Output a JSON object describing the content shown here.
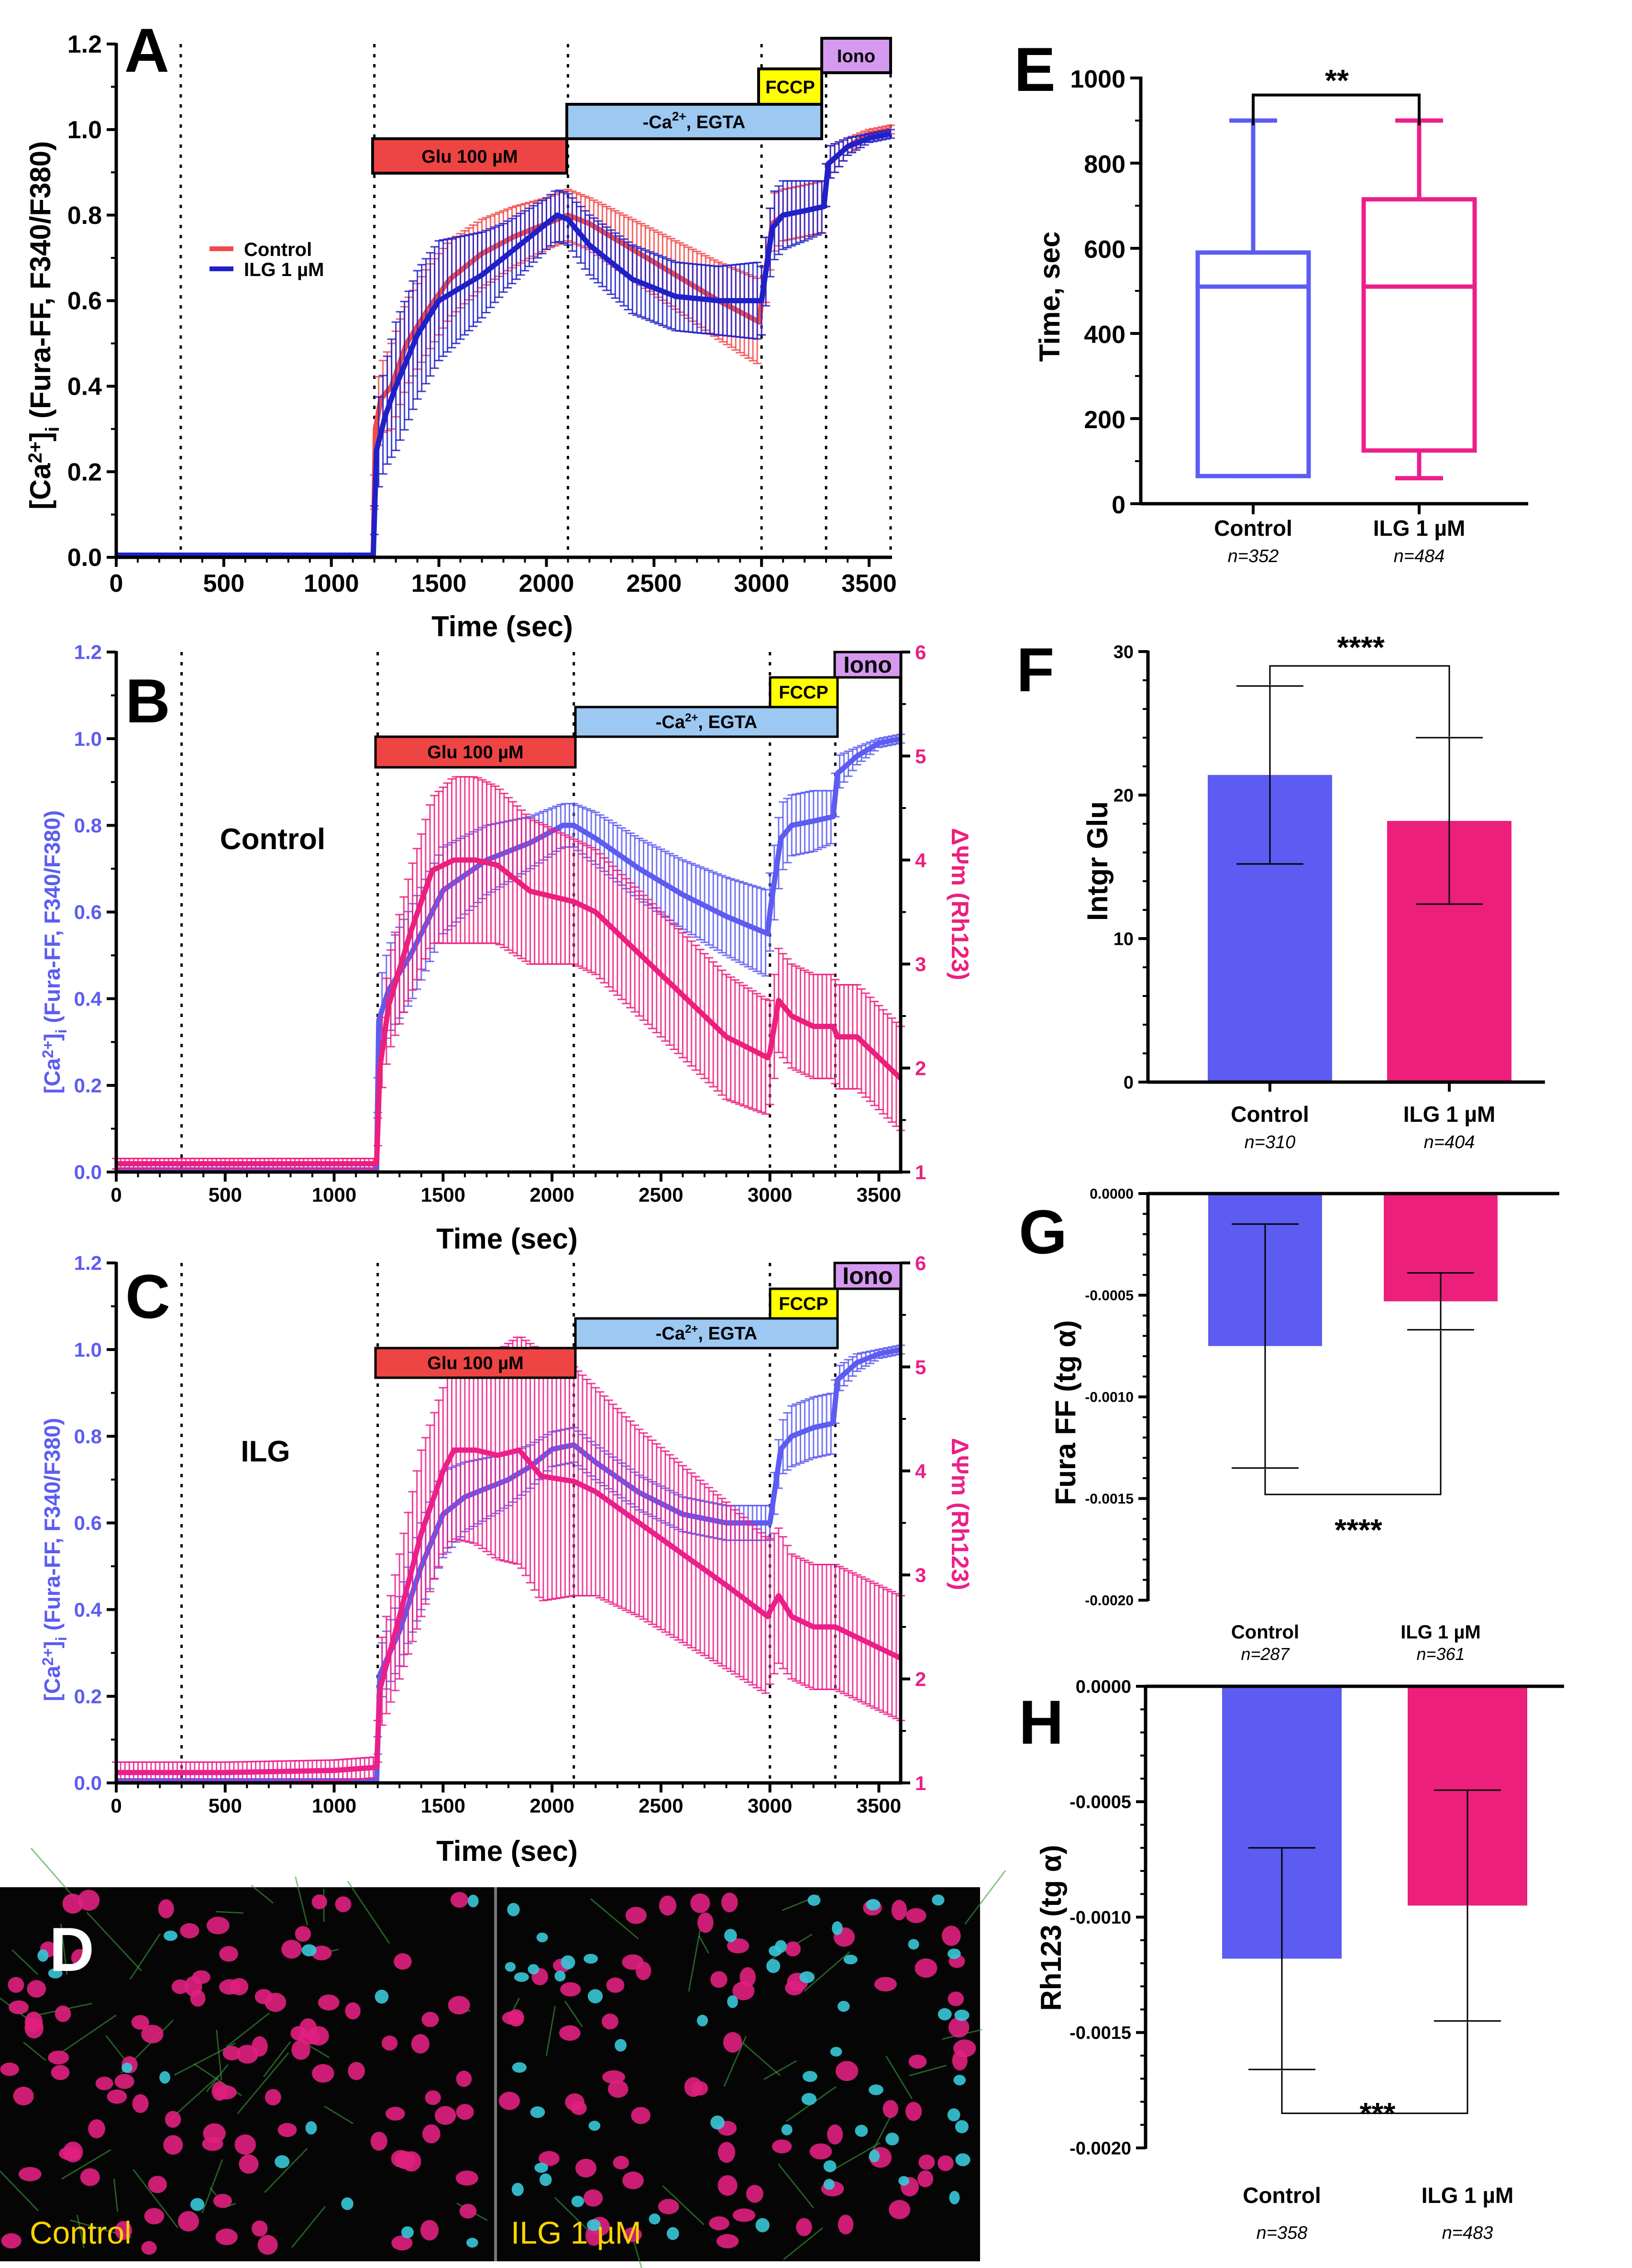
{
  "colors": {
    "control_red": "#f24a4a",
    "ilg_blue": "#1f20c9",
    "ca_blue": "#5c5cf2",
    "rh_magenta": "#ec1f7d",
    "ilg_magenta": "#ec1f8a",
    "glu_bar": "#ef4444",
    "egta_bar": "#9cc8f2",
    "fccp_bar": "#ffff00",
    "iono_bar": "#d59aef"
  },
  "treatments": {
    "glu": "Glu 100 µM",
    "ca_prefix": "-Ca",
    "ca_sup": "2+",
    "ca_suffix": ", EGTA",
    "fccp": "FCCP",
    "iono": "Iono"
  },
  "panel_a": {
    "letter": "A",
    "xlabel": "Time (sec)",
    "ylabel": "[Ca2+]i (Fura-FF, F340/F380)",
    "legend": [
      "Control",
      "ILG 1 µM"
    ]
  },
  "panel_b": {
    "letter": "B",
    "label": "Control",
    "xlabel": "Time (sec)",
    "ylabel": "[Ca2+]i (Fura-FF, F340/F380)",
    "y2label": "ΔΨm (Rh123)"
  },
  "panel_c": {
    "letter": "C",
    "label": "ILG",
    "xlabel": "Time (sec)",
    "ylabel": "[Ca2+]i (Fura-FF, F340/F380)",
    "y2label": "ΔΨm (Rh123)"
  },
  "panel_d": {
    "letter": "D",
    "left_caption": "Control",
    "right_caption": "ILG 1 µM"
  },
  "chart_data": [
    {
      "panel": "A",
      "type": "line",
      "xlabel": "Time (sec)",
      "ylabel": "[Ca2+]i (Fura-FF, F340/F380)",
      "xlim": [
        0,
        3600
      ],
      "ylim": [
        0,
        1.2
      ],
      "xticks": [
        "0",
        "500",
        "1000",
        "1500",
        "2000",
        "2500",
        "3000",
        "3500"
      ],
      "yticks": [
        "0.0",
        "0.2",
        "0.4",
        "0.6",
        "0.8",
        "1.0",
        "1.2"
      ],
      "event_lines_sec": [
        300,
        1200,
        2100,
        3000,
        3300,
        3600
      ],
      "series": [
        {
          "name": "Control",
          "color": "#f24a4a",
          "x": [
            0,
            1195,
            1205,
            1230,
            1280,
            1350,
            1450,
            1550,
            1700,
            1850,
            2000,
            2100,
            2200,
            2400,
            2600,
            2800,
            2990,
            3000,
            3050,
            3100,
            3200,
            3290,
            3310,
            3400,
            3500,
            3600
          ],
          "y": [
            0.005,
            0.005,
            0.3,
            0.37,
            0.4,
            0.5,
            0.58,
            0.65,
            0.71,
            0.75,
            0.78,
            0.8,
            0.78,
            0.72,
            0.66,
            0.6,
            0.55,
            0.6,
            0.78,
            0.8,
            0.81,
            0.82,
            0.92,
            0.96,
            0.99,
            1.0
          ],
          "err": [
            0,
            0,
            0.08,
            0.08,
            0.1,
            0.1,
            0.1,
            0.09,
            0.08,
            0.07,
            0.06,
            0.06,
            0.06,
            0.07,
            0.08,
            0.09,
            0.1,
            0.08,
            0.07,
            0.06,
            0.06,
            0.06,
            0.04,
            0.02,
            0.01,
            0.01
          ]
        },
        {
          "name": "ILG 1 µM",
          "color": "#1f20c9",
          "x": [
            0,
            1195,
            1210,
            1250,
            1300,
            1400,
            1500,
            1600,
            1700,
            1800,
            1900,
            2000,
            2050,
            2100,
            2200,
            2400,
            2600,
            2800,
            2990,
            3000,
            3050,
            3100,
            3200,
            3290,
            3310,
            3400,
            3500,
            3600
          ],
          "y": [
            0.005,
            0.005,
            0.25,
            0.33,
            0.4,
            0.52,
            0.6,
            0.63,
            0.66,
            0.7,
            0.74,
            0.78,
            0.8,
            0.79,
            0.73,
            0.65,
            0.61,
            0.6,
            0.6,
            0.6,
            0.77,
            0.8,
            0.81,
            0.82,
            0.92,
            0.96,
            0.98,
            0.99
          ],
          "err": [
            0,
            0,
            0.1,
            0.12,
            0.15,
            0.15,
            0.14,
            0.12,
            0.1,
            0.08,
            0.07,
            0.06,
            0.06,
            0.06,
            0.07,
            0.08,
            0.08,
            0.08,
            0.09,
            0.08,
            0.08,
            0.08,
            0.07,
            0.06,
            0.04,
            0.02,
            0.01,
            0.01
          ]
        }
      ]
    },
    {
      "panel": "B",
      "type": "line",
      "label": "Control",
      "xlabel": "Time (sec)",
      "ylabel": "[Ca2+]i (Fura-FF, F340/F380)",
      "y2label": "ΔΨm (Rh123)",
      "xlim": [
        0,
        3600
      ],
      "ylim": [
        0,
        1.2
      ],
      "y2lim": [
        1,
        6
      ],
      "xticks": [
        "0",
        "500",
        "1000",
        "1500",
        "2000",
        "2500",
        "3000",
        "3500"
      ],
      "yticks": [
        "0.0",
        "0.2",
        "0.4",
        "0.6",
        "0.8",
        "1.0",
        "1.2"
      ],
      "y2ticks": [
        "1",
        "2",
        "3",
        "4",
        "5",
        "6"
      ],
      "event_lines_sec": [
        300,
        1200,
        2100,
        3000,
        3300
      ],
      "series": [
        {
          "name": "[Ca2+]i",
          "axis": "left",
          "color": "#5c5cf2",
          "x": [
            0,
            1195,
            1205,
            1250,
            1350,
            1500,
            1700,
            1900,
            2050,
            2100,
            2200,
            2400,
            2600,
            2800,
            2990,
            3000,
            3050,
            3100,
            3200,
            3290,
            3310,
            3400,
            3500,
            3600
          ],
          "y": [
            0.005,
            0.005,
            0.35,
            0.42,
            0.5,
            0.65,
            0.72,
            0.76,
            0.8,
            0.8,
            0.77,
            0.7,
            0.64,
            0.59,
            0.55,
            0.6,
            0.77,
            0.8,
            0.81,
            0.82,
            0.92,
            0.96,
            0.99,
            1.0
          ],
          "err": [
            0,
            0,
            0.08,
            0.1,
            0.11,
            0.1,
            0.08,
            0.06,
            0.05,
            0.05,
            0.06,
            0.07,
            0.08,
            0.09,
            0.1,
            0.09,
            0.08,
            0.07,
            0.07,
            0.06,
            0.04,
            0.02,
            0.01,
            0.01
          ]
        },
        {
          "name": "ΔΨm",
          "axis": "right",
          "color": "#ec1f7d",
          "x": [
            0,
            1195,
            1210,
            1250,
            1350,
            1450,
            1550,
            1650,
            1750,
            1900,
            2100,
            2200,
            2400,
            2600,
            2800,
            2990,
            3000,
            3040,
            3100,
            3200,
            3290,
            3310,
            3400,
            3500,
            3600
          ],
          "y": [
            1.08,
            1.08,
            2.0,
            2.6,
            3.3,
            3.9,
            4.0,
            4.0,
            3.95,
            3.7,
            3.6,
            3.5,
            3.1,
            2.7,
            2.3,
            2.1,
            2.15,
            2.65,
            2.5,
            2.4,
            2.4,
            2.3,
            2.3,
            2.1,
            1.9
          ],
          "err": [
            0.05,
            0.05,
            0.3,
            0.45,
            0.6,
            0.7,
            0.8,
            0.8,
            0.75,
            0.7,
            0.6,
            0.6,
            0.6,
            0.6,
            0.6,
            0.55,
            0.5,
            0.5,
            0.5,
            0.5,
            0.5,
            0.5,
            0.5,
            0.5,
            0.5
          ]
        }
      ]
    },
    {
      "panel": "C",
      "type": "line",
      "label": "ILG",
      "xlabel": "Time (sec)",
      "ylabel": "[Ca2+]i (Fura-FF, F340/F380)",
      "y2label": "ΔΨm (Rh123)",
      "xlim": [
        0,
        3600
      ],
      "ylim": [
        0,
        1.2
      ],
      "y2lim": [
        1,
        6
      ],
      "xticks": [
        "0",
        "500",
        "1000",
        "1500",
        "2000",
        "2500",
        "3000",
        "3500"
      ],
      "yticks": [
        "0.0",
        "0.2",
        "0.4",
        "0.6",
        "0.8",
        "1.0",
        "1.2"
      ],
      "y2ticks": [
        "1",
        "2",
        "3",
        "4",
        "5",
        "6"
      ],
      "event_lines_sec": [
        300,
        1200,
        2100,
        3000,
        3300
      ],
      "series": [
        {
          "name": "[Ca2+]i",
          "axis": "left",
          "color": "#5c5cf2",
          "x": [
            0,
            1195,
            1210,
            1300,
            1400,
            1500,
            1600,
            1700,
            1800,
            1900,
            2000,
            2100,
            2200,
            2400,
            2600,
            2800,
            2990,
            3000,
            3050,
            3100,
            3200,
            3290,
            3310,
            3400,
            3500,
            3600
          ],
          "y": [
            0.005,
            0.005,
            0.25,
            0.35,
            0.5,
            0.62,
            0.66,
            0.68,
            0.7,
            0.73,
            0.77,
            0.78,
            0.74,
            0.67,
            0.62,
            0.6,
            0.6,
            0.6,
            0.77,
            0.8,
            0.82,
            0.83,
            0.93,
            0.97,
            0.99,
            1.0
          ],
          "err": [
            0,
            0,
            0.06,
            0.08,
            0.1,
            0.1,
            0.08,
            0.07,
            0.06,
            0.05,
            0.04,
            0.04,
            0.04,
            0.04,
            0.04,
            0.04,
            0.04,
            0.04,
            0.06,
            0.07,
            0.07,
            0.07,
            0.03,
            0.02,
            0.01,
            0.01
          ]
        },
        {
          "name": "ΔΨm",
          "axis": "right",
          "color": "#ec1f8a",
          "x": [
            0,
            500,
            1000,
            1195,
            1210,
            1300,
            1400,
            1500,
            1550,
            1650,
            1750,
            1850,
            1950,
            2100,
            2200,
            2400,
            2600,
            2800,
            2990,
            3000,
            3040,
            3100,
            3200,
            3300,
            3400,
            3500,
            3600
          ],
          "y": [
            1.1,
            1.1,
            1.12,
            1.15,
            1.9,
            2.6,
            3.4,
            4.0,
            4.2,
            4.2,
            4.15,
            4.2,
            3.95,
            3.9,
            3.8,
            3.5,
            3.2,
            2.9,
            2.6,
            2.65,
            2.8,
            2.6,
            2.5,
            2.5,
            2.4,
            2.3,
            2.2
          ],
          "err": [
            0.1,
            0.1,
            0.1,
            0.1,
            0.4,
            0.6,
            0.8,
            0.8,
            0.85,
            0.9,
            1.0,
            1.1,
            1.2,
            1.1,
            1.0,
            0.9,
            0.85,
            0.8,
            0.75,
            0.7,
            0.65,
            0.6,
            0.6,
            0.6,
            0.6,
            0.6,
            0.6
          ]
        }
      ]
    },
    {
      "panel": "E",
      "type": "box",
      "ylabel": "Time, sec",
      "ylim": [
        0,
        1000
      ],
      "yticks": [
        "0",
        "200",
        "400",
        "600",
        "800",
        "1000"
      ],
      "categories": [
        "Control",
        "ILG 1 µM"
      ],
      "n": [
        "n=352",
        "n=484"
      ],
      "significance": "**",
      "boxes": [
        {
          "name": "Control",
          "min": 65,
          "q1": 65,
          "median": 510,
          "q3": 590,
          "max": 900,
          "color": "#5c5cf2"
        },
        {
          "name": "ILG 1 µM",
          "min": 60,
          "q1": 125,
          "median": 510,
          "q3": 715,
          "max": 900,
          "color": "#ec1f8a"
        }
      ]
    },
    {
      "panel": "F",
      "type": "bar",
      "ylabel": "Intgr Glu",
      "ylim": [
        0,
        30
      ],
      "yticks": [
        "0",
        "10",
        "20",
        "30"
      ],
      "categories": [
        "Control",
        "ILG 1 µM"
      ],
      "n": [
        "n=310",
        "n=404"
      ],
      "values": [
        21.4,
        18.2
      ],
      "err": [
        6.2,
        5.8
      ],
      "significance": "****",
      "colors": [
        "#5c5cf2",
        "#ec1f7d"
      ]
    },
    {
      "panel": "G",
      "type": "bar",
      "ylabel": "Fura FF (tg α)",
      "ylim": [
        -0.002,
        0
      ],
      "yticks": [
        "0.0000",
        "-0.0005",
        "-0.0010",
        "-0.0015",
        "-0.0020"
      ],
      "categories": [
        "Control",
        "ILG 1 µM"
      ],
      "n": [
        "n=287",
        "n=361"
      ],
      "values": [
        -0.00075,
        -0.00053
      ],
      "err": [
        0.0006,
        0.00014
      ],
      "significance": "****",
      "colors": [
        "#5c5cf2",
        "#ec1f7d"
      ]
    },
    {
      "panel": "H",
      "type": "bar",
      "ylabel": "Rh123 (tg α)",
      "ylim": [
        -0.002,
        0
      ],
      "yticks": [
        "0.0000",
        "-0.0005",
        "-0.0010",
        "-0.0015",
        "-0.0020"
      ],
      "categories": [
        "Control",
        "ILG 1 µM"
      ],
      "n": [
        "n=358",
        "n=483"
      ],
      "values": [
        -0.00118,
        -0.00095
      ],
      "err": [
        0.00048,
        0.0005
      ],
      "significance": "***",
      "colors": [
        "#5c5cf2",
        "#ec1f7d"
      ]
    }
  ]
}
